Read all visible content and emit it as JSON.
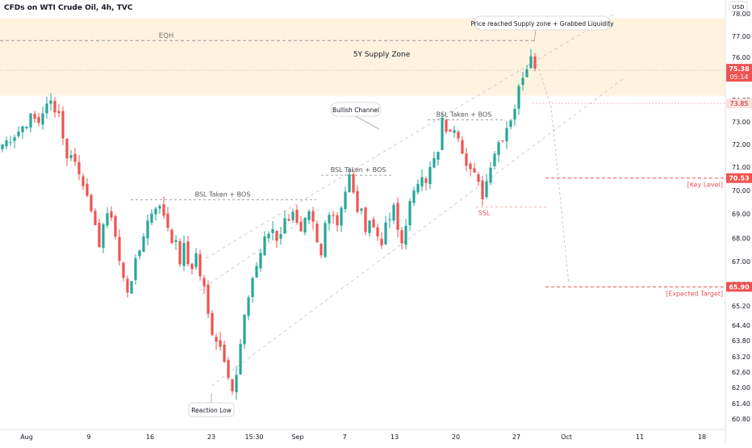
{
  "header": {
    "title": "CFDs on WTI Crude Oil, 4h, TVC",
    "currency": "USD"
  },
  "colors": {
    "up": "#26a69a",
    "down": "#ef5350",
    "zone": "#fff3e0",
    "dashed_gray": "#9e9e9e",
    "key_red": "#ef5350",
    "price_bg": "#ef5350",
    "axis_text": "#131722"
  },
  "annotations": {
    "eqh": "EQH",
    "supply_zone": "5Y Supply Zone",
    "price_reached": "Price reached Supply zone + Grabbed Liquidity",
    "bullish_channel": "Bullish Channel",
    "bsl_1": "BSL Taken + BOS",
    "bsl_2": "BSL Taken + BOS",
    "bsl_3": "BSL Taken + BOS",
    "ssl": "SSL",
    "reaction_low": "Reaction Low",
    "key_level": "[Key Level]",
    "expected_target": "[Expected Target]"
  },
  "price_labels": {
    "current": "75.38",
    "countdown": "05:14",
    "level_7385": "73.85",
    "key_level": "70.53",
    "target": "65.90"
  },
  "chart_data": {
    "type": "candlestick",
    "title": "CFDs on WTI Crude Oil, 4h, TVC",
    "y_ticks": [
      "78.00",
      "77.00",
      "76.00",
      "75.00",
      "74.00",
      "73.00",
      "72.00",
      "71.00",
      "70.00",
      "69.00",
      "68.00",
      "67.00",
      "66.00",
      "65.20",
      "64.40",
      "63.80",
      "63.20",
      "62.60",
      "62.00",
      "61.40",
      "60.80"
    ],
    "x_ticks": [
      "Aug",
      "9",
      "16",
      "23",
      "15:30",
      "Sep",
      "7",
      "13",
      "20",
      "27",
      "Oct",
      "11",
      "18"
    ],
    "supply_zone": [
      74.2,
      77.8
    ],
    "eqh": 76.8,
    "key_level": 70.53,
    "expected_target": 65.9,
    "current_price": 75.38,
    "bsl_levels": [
      69.6,
      70.65,
      73.1
    ],
    "ssl": 69.3,
    "reaction_low": 61.4,
    "close_path": [
      [
        0,
        72.0
      ],
      [
        4,
        72.6
      ],
      [
        7,
        73.2
      ],
      [
        9,
        73.0
      ],
      [
        10,
        73.5
      ],
      [
        12,
        73.9
      ],
      [
        14,
        73.4
      ],
      [
        15,
        72.4
      ],
      [
        16,
        71.3
      ],
      [
        17,
        71.7
      ],
      [
        19,
        70.7
      ],
      [
        21,
        70.0
      ],
      [
        22,
        68.9
      ],
      [
        23,
        68.3
      ],
      [
        24,
        67.8
      ],
      [
        25,
        68.6
      ],
      [
        27,
        69.0
      ],
      [
        28,
        68.1
      ],
      [
        29,
        67.0
      ],
      [
        30,
        66.2
      ],
      [
        31,
        65.8
      ],
      [
        32,
        66.3
      ],
      [
        33,
        66.9
      ],
      [
        34,
        67.5
      ],
      [
        35,
        68.2
      ],
      [
        36,
        68.7
      ],
      [
        37,
        69.1
      ],
      [
        38,
        69.4
      ],
      [
        39,
        69.2
      ],
      [
        40,
        69.0
      ],
      [
        41,
        68.5
      ],
      [
        42,
        68.0
      ],
      [
        43,
        67.7
      ],
      [
        44,
        67.0
      ],
      [
        45,
        67.6
      ],
      [
        46,
        66.9
      ],
      [
        47,
        66.8
      ],
      [
        48,
        67.3
      ],
      [
        49,
        66.4
      ],
      [
        50,
        65.8
      ],
      [
        51,
        64.8
      ],
      [
        52,
        64.2
      ],
      [
        53,
        63.9
      ],
      [
        54,
        63.6
      ],
      [
        55,
        63.2
      ],
      [
        56,
        62.6
      ],
      [
        57,
        61.9
      ],
      [
        58,
        62.4
      ],
      [
        59,
        63.6
      ],
      [
        60,
        64.6
      ],
      [
        61,
        65.6
      ],
      [
        62,
        66.3
      ],
      [
        63,
        66.8
      ],
      [
        64,
        67.4
      ],
      [
        65,
        67.9
      ],
      [
        66,
        68.2
      ],
      [
        67,
        68.4
      ],
      [
        68,
        68.0
      ],
      [
        69,
        68.3
      ],
      [
        70,
        68.7
      ],
      [
        71,
        68.9
      ],
      [
        72,
        69.2
      ],
      [
        73,
        68.5
      ],
      [
        74,
        68.1
      ],
      [
        75,
        68.6
      ],
      [
        76,
        68.9
      ],
      [
        77,
        68.5
      ],
      [
        78,
        67.7
      ],
      [
        79,
        67.2
      ],
      [
        80,
        68.6
      ],
      [
        81,
        69.2
      ],
      [
        82,
        69.0
      ],
      [
        83,
        68.6
      ],
      [
        84,
        69.4
      ],
      [
        85,
        70.0
      ],
      [
        86,
        70.6
      ],
      [
        87,
        69.8
      ],
      [
        88,
        69.2
      ],
      [
        89,
        69.0
      ],
      [
        90,
        68.5
      ],
      [
        91,
        68.8
      ],
      [
        92,
        68.4
      ],
      [
        93,
        68.1
      ],
      [
        94,
        67.9
      ],
      [
        95,
        68.4
      ],
      [
        96,
        68.8
      ],
      [
        97,
        69.2
      ],
      [
        98,
        68.3
      ],
      [
        99,
        67.8
      ],
      [
        100,
        68.7
      ],
      [
        101,
        69.4
      ],
      [
        102,
        69.8
      ],
      [
        103,
        70.4
      ],
      [
        104,
        70.8
      ],
      [
        105,
        70.5
      ],
      [
        106,
        70.9
      ],
      [
        107,
        71.3
      ],
      [
        108,
        71.6
      ],
      [
        109,
        73.0
      ],
      [
        110,
        72.7
      ],
      [
        111,
        72.4
      ],
      [
        112,
        72.8
      ],
      [
        113,
        72.5
      ],
      [
        114,
        71.8
      ],
      [
        115,
        71.3
      ],
      [
        116,
        70.9
      ],
      [
        117,
        70.6
      ],
      [
        118,
        70.2
      ],
      [
        119,
        69.8
      ],
      [
        120,
        70.4
      ],
      [
        121,
        71.2
      ],
      [
        122,
        71.7
      ],
      [
        123,
        72.1
      ],
      [
        124,
        72.4
      ],
      [
        125,
        72.8
      ],
      [
        126,
        73.2
      ],
      [
        127,
        73.7
      ],
      [
        128,
        74.5
      ],
      [
        129,
        75.2
      ],
      [
        130,
        75.6
      ],
      [
        131,
        76.3
      ],
      [
        132,
        75.4
      ]
    ]
  }
}
